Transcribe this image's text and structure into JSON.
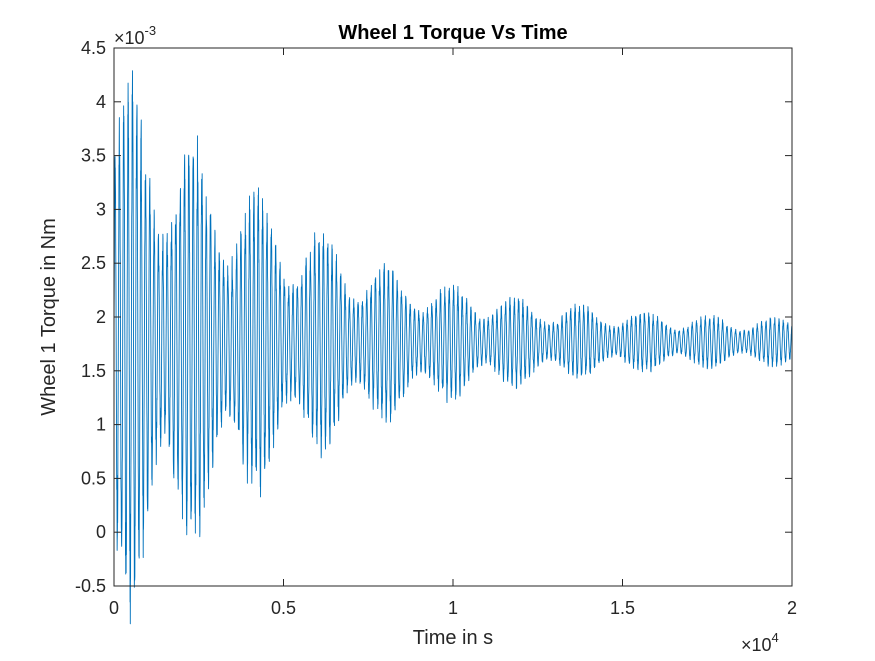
{
  "chart_data": {
    "type": "line",
    "title": "Wheel 1 Torque Vs Time",
    "xlabel": "Time in s",
    "ylabel": "Wheel 1 Torque in Nm",
    "xlim": [
      0,
      20000
    ],
    "ylim": [
      -0.0005,
      0.0045
    ],
    "x_ticks": [
      0,
      5000,
      10000,
      15000,
      20000
    ],
    "x_tick_labels": [
      "0",
      "0.5",
      "1",
      "1.5",
      "2"
    ],
    "y_ticks": [
      -0.0005,
      0,
      0.0005,
      0.001,
      0.0015,
      0.002,
      0.0025,
      0.003,
      0.0035,
      0.004,
      0.0045
    ],
    "y_tick_labels": [
      "-0.5",
      "0",
      "0.5",
      "1",
      "1.5",
      "2",
      "2.5",
      "3",
      "3.5",
      "4",
      "4.5"
    ],
    "x_multiplier": {
      "base": "×10",
      "exponent": "4"
    },
    "y_multiplier": {
      "base": "×10",
      "exponent": "-3"
    },
    "grid": false,
    "legend": "none",
    "line_color": "#0072BD",
    "series": [
      {
        "signal": "damped oscillation",
        "mean": 0.00177,
        "envelope": [
          [
            0,
            0.0021
          ],
          [
            500,
            0.00225
          ],
          [
            1000,
            0.0021
          ],
          [
            2500,
            0.00165
          ],
          [
            5000,
            0.0011
          ],
          [
            7500,
            0.00072
          ],
          [
            10000,
            0.00048
          ],
          [
            12500,
            0.00035
          ],
          [
            15000,
            0.00027
          ],
          [
            17500,
            0.00022
          ],
          [
            20000,
            0.0002
          ]
        ]
      }
    ]
  }
}
